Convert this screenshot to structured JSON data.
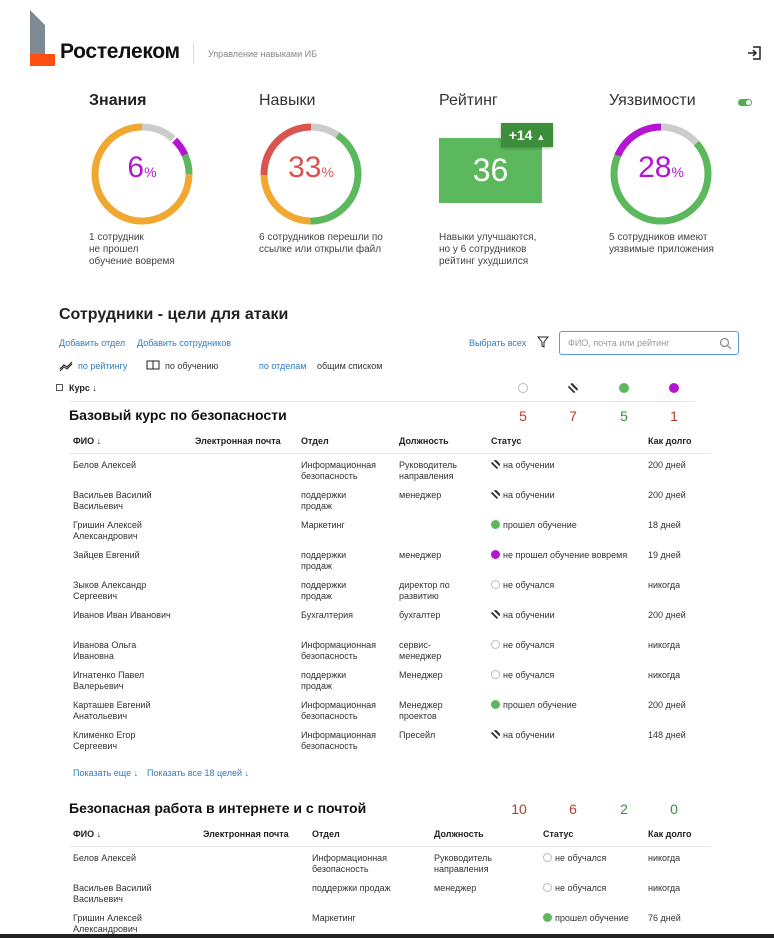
{
  "header": {
    "brand": "Ростелеком",
    "app_title": "Управление навыками ИБ"
  },
  "metrics": {
    "knowledge": {
      "title": "Знания",
      "value": "6",
      "unit": "%",
      "desc": [
        "1 сотрудник",
        "не прошел",
        "обучение вовремя"
      ],
      "color": "#b415d3"
    },
    "skills": {
      "title": "Навыки",
      "value": "33",
      "unit": "%",
      "desc": [
        "6 сотрудников перешли по",
        "ссылке или открыли файл"
      ],
      "color": "#d9534f"
    },
    "rating": {
      "title": "Рейтинг",
      "value": "36",
      "badge": "+14",
      "desc": [
        "Навыки улучшаются,",
        "но у 6 сотрудников",
        "рейтинг ухудшился"
      ]
    },
    "vuln": {
      "title": "Уязвимости",
      "value": "28",
      "unit": "%",
      "desc": [
        "5 сотрудников имеют",
        "уязвимые приложения"
      ],
      "color": "#b415d3"
    }
  },
  "colors": {
    "green": "#5cb85c",
    "orange": "#f0a830",
    "red": "#d9534f",
    "purple": "#b415d3",
    "grey": "#cccccc",
    "link": "#2f7bc4"
  },
  "section": {
    "title": "Сотрудники - цели для атаки",
    "add_dept": "Добавить отдел",
    "add_emp": "Добавить сотрудников",
    "select_all": "Выбрать всех",
    "search_placeholder": "ФИО, почта или рейтинг",
    "by_rating": "по рейтингу",
    "by_training": "по обучению",
    "by_dept": "по отделам",
    "common_list": "общим списком",
    "course_label": "Курс ↓"
  },
  "groups": [
    {
      "title": "Базовый курс по безопасности",
      "counts": [
        "5",
        "7",
        "5",
        "1"
      ],
      "headers": {
        "name": "ФИО ↓",
        "email": "Электронная почта",
        "dept": "Отдел",
        "position": "Должность",
        "status": "Статус",
        "duration": "Как долго"
      },
      "rows": [
        {
          "name": [
            "Белов Алексей"
          ],
          "dept": [
            "Информационная",
            "безопасность"
          ],
          "position": [
            "Руководитель",
            "направления"
          ],
          "status": "на обучении",
          "kind": "hatch",
          "duration": "200 дней"
        },
        {
          "name": [
            "Васильев Василий",
            "Васильевич"
          ],
          "dept": [
            "поддержки",
            "продаж"
          ],
          "position": [
            "менеджер"
          ],
          "status": "на обучении",
          "kind": "hatch",
          "duration": "200 дней"
        },
        {
          "name": [
            "Гришин Алексей",
            "Александрович"
          ],
          "dept": [
            "Маркетинг"
          ],
          "position": [],
          "status": "прошел обучение",
          "kind": "green",
          "duration": "18 дней"
        },
        {
          "name": [
            "Зайцев Евгений"
          ],
          "dept": [
            "поддержки",
            "продаж"
          ],
          "position": [
            "менеджер"
          ],
          "status": "не прошел обучение вовремя",
          "kind": "purple",
          "duration": "19 дней"
        },
        {
          "name": [
            "Зыков Александр",
            "Сергеевич"
          ],
          "dept": [
            "поддержки",
            "продаж"
          ],
          "position": [
            "директор по",
            "развитию"
          ],
          "status": "не обучался",
          "kind": "empty",
          "duration": "никогда"
        },
        {
          "name": [
            "Иванов Иван Иванович"
          ],
          "dept": [
            "Бухгалтерия"
          ],
          "position": [
            "бухгалтер"
          ],
          "status": "на обучении",
          "kind": "hatch",
          "duration": "200 дней"
        },
        {
          "name": [
            "Иванова Ольга",
            "Ивановна"
          ],
          "dept": [
            "Информационная",
            "безопасность"
          ],
          "position": [
            "сервис-",
            "менеджер"
          ],
          "status": "не обучался",
          "kind": "empty",
          "duration": "никогда"
        },
        {
          "name": [
            "Игнатенко Павел",
            "Валерьевич"
          ],
          "dept": [
            "поддержки",
            "продаж"
          ],
          "position": [
            "Менеджер"
          ],
          "status": "не обучался",
          "kind": "empty",
          "duration": "никогда"
        },
        {
          "name": [
            "Карташев Евгений",
            "Анатольевич"
          ],
          "dept": [
            "Информационная",
            "безопасность"
          ],
          "position": [
            "Менеджер",
            "проектов"
          ],
          "status": "прошел обучение",
          "kind": "green",
          "duration": "200 дней"
        },
        {
          "name": [
            "Клименко Егор",
            "Сергеевич"
          ],
          "dept": [
            "Информационная",
            "безопасность"
          ],
          "position": [
            "Пресейл"
          ],
          "status": "на обучении",
          "kind": "hatch",
          "duration": "148 дней"
        }
      ],
      "show_more": "Показать еще ↓",
      "show_all": "Показать все 18 целей ↓"
    },
    {
      "title": "Безопасная работа в интернете и с почтой",
      "counts": [
        "10",
        "6",
        "2",
        "0"
      ],
      "headers": {
        "name": "ФИО ↓",
        "email": "Электронная почта",
        "dept": "Отдел",
        "position": "Должность",
        "status": "Статус",
        "duration": "Как долго"
      },
      "rows": [
        {
          "name": [
            "Белов Алексей"
          ],
          "dept": [
            "Информационная",
            "безопасность"
          ],
          "position": [
            "Руководитель",
            "направления"
          ],
          "status": "не обучался",
          "kind": "empty",
          "duration": "никогда"
        },
        {
          "name": [
            "Васильев Василий",
            "Васильевич"
          ],
          "dept": [
            "поддержки продаж"
          ],
          "position": [
            "менеджер"
          ],
          "status": "не обучался",
          "kind": "empty",
          "duration": "никогда"
        },
        {
          "name": [
            "Гришин Алексей",
            "Александрович"
          ],
          "dept": [
            "Маркетинг"
          ],
          "position": [],
          "status": "прошел обучение",
          "kind": "green",
          "duration": "76 дней"
        }
      ]
    }
  ]
}
